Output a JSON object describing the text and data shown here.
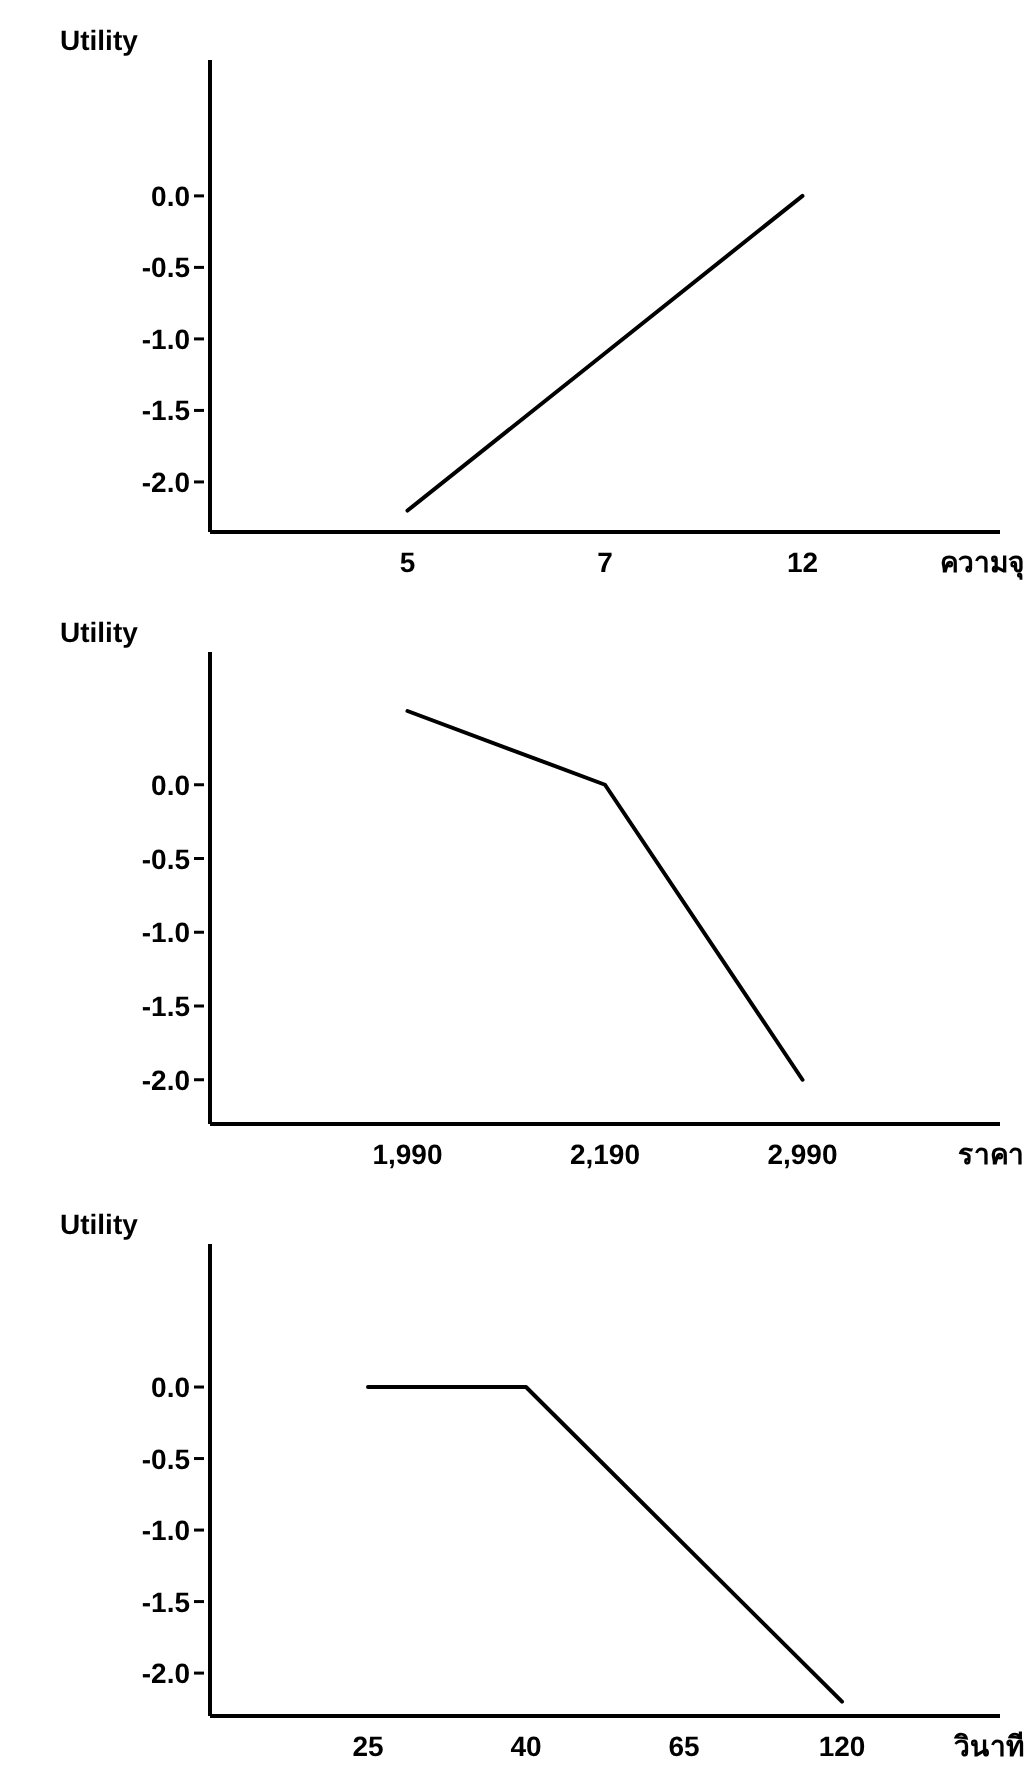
{
  "chart_data": [
    {
      "type": "line",
      "ylabel": "Utility",
      "xlabel": "ความจุ",
      "categories": [
        "5",
        "7",
        "12"
      ],
      "values": [
        -2.2,
        -1.1,
        0.0
      ],
      "color": "#000000",
      "ylim": [
        -2.35,
        0.95
      ],
      "yticks": [
        {
          "value": 0,
          "label": "0.0"
        },
        {
          "value": -0.5,
          "label": "-0.5"
        },
        {
          "value": -1,
          "label": "-1.0"
        },
        {
          "value": -1.5,
          "label": "-1.5"
        },
        {
          "value": -2,
          "label": "-2.0"
        }
      ]
    },
    {
      "type": "line",
      "ylabel": "Utility",
      "xlabel": "ราคา",
      "categories": [
        "1,990",
        "2,190",
        "2,990"
      ],
      "values": [
        0.5,
        0.0,
        -2.0
      ],
      "color": "#000000",
      "ylim": [
        -2.3,
        0.9
      ],
      "yticks": [
        {
          "value": 0,
          "label": "0.0"
        },
        {
          "value": -0.5,
          "label": "-0.5"
        },
        {
          "value": -1,
          "label": "-1.0"
        },
        {
          "value": -1.5,
          "label": "-1.5"
        },
        {
          "value": -2,
          "label": "-2.0"
        }
      ]
    },
    {
      "type": "line",
      "ylabel": "Utility",
      "xlabel": "วินาที",
      "categories": [
        "25",
        "40",
        "65",
        "120"
      ],
      "values": [
        0.0,
        0.0,
        -1.1,
        -2.2
      ],
      "color": "#000000",
      "ylim": [
        -2.3,
        1.0
      ],
      "yticks": [
        {
          "value": 0,
          "label": "0.0"
        },
        {
          "value": -0.5,
          "label": "-0.5"
        },
        {
          "value": -1,
          "label": "-1.0"
        },
        {
          "value": -1.5,
          "label": "-1.5"
        },
        {
          "value": -2,
          "label": "-2.0"
        }
      ]
    }
  ]
}
